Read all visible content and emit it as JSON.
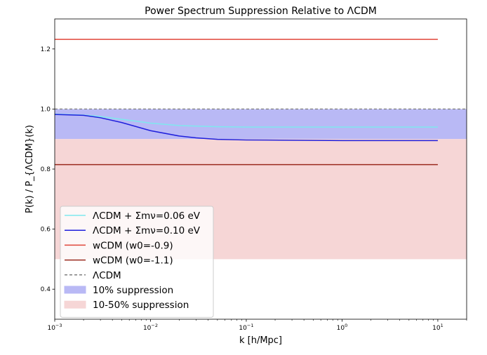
{
  "chart_data": {
    "type": "line",
    "title": "Power Spectrum Suppression Relative to ΛCDM",
    "xlabel": "k [h/Mpc]",
    "ylabel": "P(k) / P_{ΛCDM}(k)",
    "xscale": "log",
    "xlim": [
      0.001,
      20
    ],
    "ylim": [
      0.3,
      1.3
    ],
    "xticks": [
      {
        "value": 0.001,
        "base": "10",
        "exp": "−3"
      },
      {
        "value": 0.01,
        "base": "10",
        "exp": "−2"
      },
      {
        "value": 0.1,
        "base": "10",
        "exp": "−1"
      },
      {
        "value": 1,
        "base": "10",
        "exp": "0"
      },
      {
        "value": 10,
        "base": "10",
        "exp": "1"
      }
    ],
    "yticks": [
      {
        "value": 0.4,
        "label": "0.4"
      },
      {
        "value": 0.6,
        "label": "0.6"
      },
      {
        "value": 0.8,
        "label": "0.8"
      },
      {
        "value": 1.0,
        "label": "1.0"
      },
      {
        "value": 1.2,
        "label": "1.2"
      }
    ],
    "grid": false,
    "legend_position": "lower-left",
    "bands": [
      {
        "name": "10% suppression",
        "y0": 0.9,
        "y1": 1.0,
        "color": "#b9b9f5"
      },
      {
        "name": "10-50% suppression",
        "y0": 0.5,
        "y1": 0.9,
        "color": "#f6d6d6"
      }
    ],
    "series": [
      {
        "name": "ΛCDM + Σmν=0.06 eV",
        "color": "#7fe8ee",
        "dash": "",
        "x": [
          0.001,
          0.002,
          0.003,
          0.005,
          0.01,
          0.02,
          0.05,
          0.1,
          0.3,
          1,
          3,
          10
        ],
        "y": [
          0.983,
          0.98,
          0.975,
          0.966,
          0.953,
          0.945,
          0.941,
          0.94,
          0.94,
          0.94,
          0.94,
          0.94
        ]
      },
      {
        "name": "ΛCDM + Σmν=0.10 eV",
        "color": "#1f1fdc",
        "dash": "",
        "x": [
          0.001,
          0.002,
          0.003,
          0.005,
          0.007,
          0.01,
          0.02,
          0.03,
          0.05,
          0.1,
          0.3,
          1,
          3,
          10
        ],
        "y": [
          0.982,
          0.979,
          0.971,
          0.955,
          0.942,
          0.928,
          0.91,
          0.904,
          0.899,
          0.897,
          0.896,
          0.895,
          0.895,
          0.895
        ]
      },
      {
        "name": "wCDM (w0=-0.9)",
        "color": "#e0463a",
        "dash": "",
        "x": [
          0.001,
          10
        ],
        "y": [
          1.232,
          1.232
        ]
      },
      {
        "name": "wCDM (w0=-1.1)",
        "color": "#9a2a1e",
        "dash": "",
        "x": [
          0.001,
          10
        ],
        "y": [
          0.815,
          0.815
        ]
      },
      {
        "name": "ΛCDM",
        "color": "#7f7f7f",
        "dash": "4,3",
        "x": [
          0.001,
          20
        ],
        "y": [
          1.0,
          1.0
        ]
      }
    ]
  }
}
